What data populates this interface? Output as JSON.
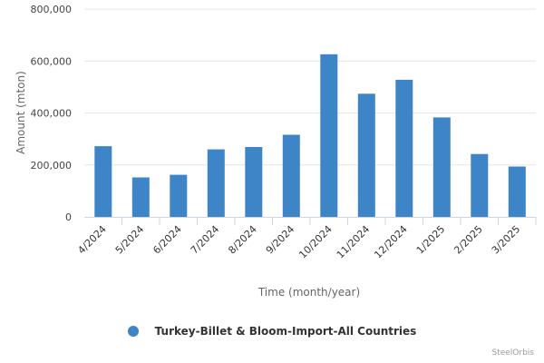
{
  "chart_data": {
    "type": "bar",
    "categories": [
      "4/2024",
      "5/2024",
      "6/2024",
      "7/2024",
      "8/2024",
      "9/2024",
      "10/2024",
      "11/2024",
      "12/2024",
      "1/2025",
      "2/2025",
      "3/2025"
    ],
    "series": [
      {
        "name": "Turkey-Billet & Bloom-Import-All Countries",
        "color": "#3d85c6",
        "values": [
          272000,
          152000,
          162000,
          260000,
          269000,
          316000,
          626000,
          474000,
          528000,
          383000,
          242000,
          194000
        ]
      }
    ],
    "xlabel": "Time (month/year)",
    "ylabel": "Amount (mton)",
    "ylim": [
      0,
      800000
    ],
    "yticks": [
      "0",
      "200,000",
      "400,000",
      "600,000",
      "800,000"
    ],
    "grid": true,
    "legend_position": "bottom"
  },
  "credit": "SteelOrbis"
}
